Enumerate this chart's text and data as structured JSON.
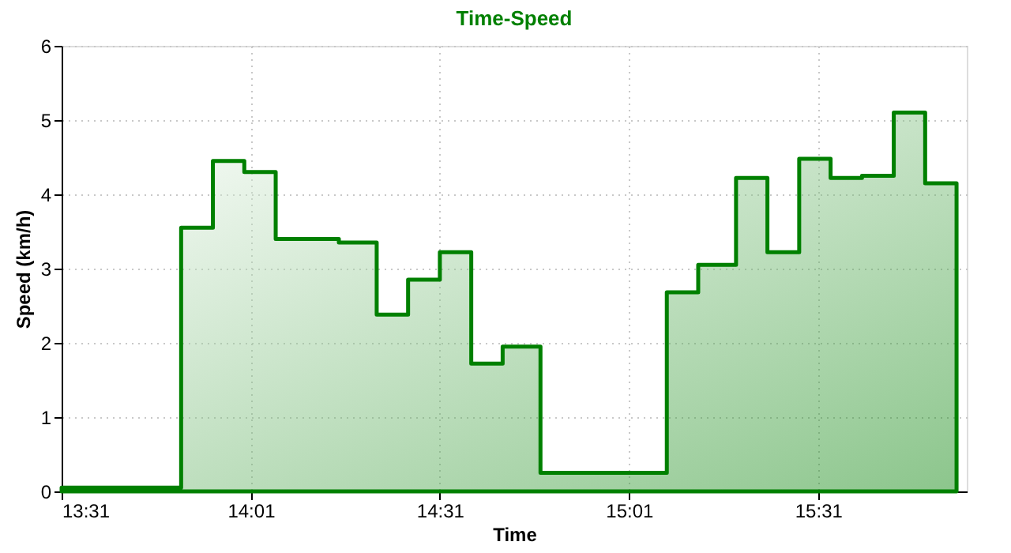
{
  "chart_data": {
    "type": "step",
    "title": "Time-Speed",
    "xlabel": "Time",
    "ylabel": "Speed (km/h)",
    "x": [
      13.517,
      13.833,
      13.917,
      14.0,
      14.083,
      14.25,
      14.35,
      14.433,
      14.517,
      14.6,
      14.683,
      14.783,
      15.117,
      15.2,
      15.3,
      15.383,
      15.467,
      15.55,
      15.633,
      15.717,
      15.8,
      15.883
    ],
    "series": [
      {
        "type": "area",
        "color": "#008000",
        "values": [
          0.05,
          3.55,
          4.45,
          4.3,
          3.4,
          3.35,
          2.38,
          2.85,
          3.22,
          1.72,
          1.95,
          0.25,
          2.68,
          3.05,
          4.22,
          3.22,
          4.48,
          4.22,
          4.25,
          5.1,
          4.15,
          4.15
        ]
      }
    ],
    "xlim": [
      13.517,
      15.91
    ],
    "xticks": [
      {
        "value": 13.517,
        "label": "13:31"
      },
      {
        "value": 14.017,
        "label": "14:01"
      },
      {
        "value": 14.517,
        "label": "14:31"
      },
      {
        "value": 15.017,
        "label": "15:01"
      },
      {
        "value": 15.517,
        "label": "15:31"
      }
    ],
    "ylim": [
      0,
      6
    ],
    "yticks": [
      0,
      1,
      2,
      3,
      4,
      5,
      6
    ],
    "grid": true
  }
}
